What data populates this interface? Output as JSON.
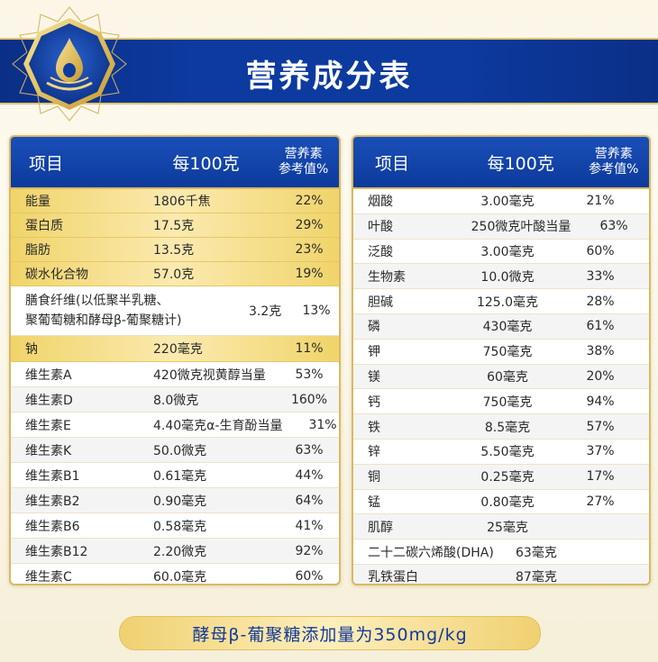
{
  "header": {
    "title": "营养成分表",
    "emblem": "droplet-emblem"
  },
  "left_table": {
    "headers": {
      "item": "项目",
      "per100g": "每100克",
      "nrv_line1": "营养素",
      "nrv_line2": "参考值%"
    },
    "gold_rows": [
      {
        "name": "能量",
        "amount": "1806千焦",
        "nrv": "22%"
      },
      {
        "name": "蛋白质",
        "amount": "17.5克",
        "nrv": "29%"
      },
      {
        "name": "脂肪",
        "amount": "13.5克",
        "nrv": "23%"
      },
      {
        "name": "碳水化合物",
        "amount": "57.0克",
        "nrv": "19%"
      }
    ],
    "fiber": {
      "name_line1": "膳食纤维(以低聚半乳糖、",
      "name_line2": "聚葡萄糖和酵母β-葡聚糖计)",
      "amount": "3.2克",
      "nrv": "13%"
    },
    "sodium": {
      "name": "钠",
      "amount": "220毫克",
      "nrv": "11%"
    },
    "vitamin_rows": [
      {
        "name": "维生素A",
        "amount": "420微克视黄醇当量",
        "nrv": "53%"
      },
      {
        "name": "维生素D",
        "amount": "8.0微克",
        "nrv": "160%"
      },
      {
        "name": "维生素E",
        "amount": "4.40毫克α-生育酚当量",
        "nrv": "31%"
      },
      {
        "name": "维生素K",
        "amount": "50.0微克",
        "nrv": "63%"
      },
      {
        "name": "维生素B1",
        "amount": "0.61毫克",
        "nrv": "44%"
      },
      {
        "name": "维生素B2",
        "amount": "0.90毫克",
        "nrv": "64%"
      },
      {
        "name": "维生素B6",
        "amount": "0.58毫克",
        "nrv": "41%"
      },
      {
        "name": "维生素B12",
        "amount": "2.20微克",
        "nrv": "92%"
      },
      {
        "name": "维生素C",
        "amount": "60.0毫克",
        "nrv": "60%"
      }
    ]
  },
  "right_table": {
    "headers": {
      "item": "项目",
      "per100g": "每100克",
      "nrv_line1": "营养素",
      "nrv_line2": "参考值%"
    },
    "rows": [
      {
        "name": "烟酸",
        "amount": "3.00毫克",
        "nrv": "21%"
      },
      {
        "name": "叶酸",
        "amount": "250微克叶酸当量",
        "nrv": "63%"
      },
      {
        "name": "泛酸",
        "amount": "3.00毫克",
        "nrv": "60%"
      },
      {
        "name": "生物素",
        "amount": "10.0微克",
        "nrv": "33%"
      },
      {
        "name": "胆碱",
        "amount": "125.0毫克",
        "nrv": "28%"
      },
      {
        "name": "磷",
        "amount": "430毫克",
        "nrv": "61%"
      },
      {
        "name": "钾",
        "amount": "750毫克",
        "nrv": "38%"
      },
      {
        "name": "镁",
        "amount": "60毫克",
        "nrv": "20%"
      },
      {
        "name": "钙",
        "amount": "750毫克",
        "nrv": "94%"
      },
      {
        "name": "铁",
        "amount": "8.5毫克",
        "nrv": "57%"
      },
      {
        "name": "锌",
        "amount": "5.50毫克",
        "nrv": "37%"
      },
      {
        "name": "铜",
        "amount": "0.25毫克",
        "nrv": "17%"
      },
      {
        "name": "锰",
        "amount": "0.80毫克",
        "nrv": "27%"
      },
      {
        "name": "肌醇",
        "amount": "25毫克",
        "nrv": ""
      },
      {
        "name": "二十二碳六烯酸(DHA)",
        "amount": "63毫克",
        "nrv": ""
      },
      {
        "name": "乳铁蛋白",
        "amount": "87毫克",
        "nrv": ""
      }
    ]
  },
  "footer": {
    "text": "酵母β-葡聚糖添加量为350mg/kg"
  },
  "colors": {
    "navy": "#0c3a9f",
    "gold": "#f0d46a",
    "accent_text": "#123a9c"
  }
}
